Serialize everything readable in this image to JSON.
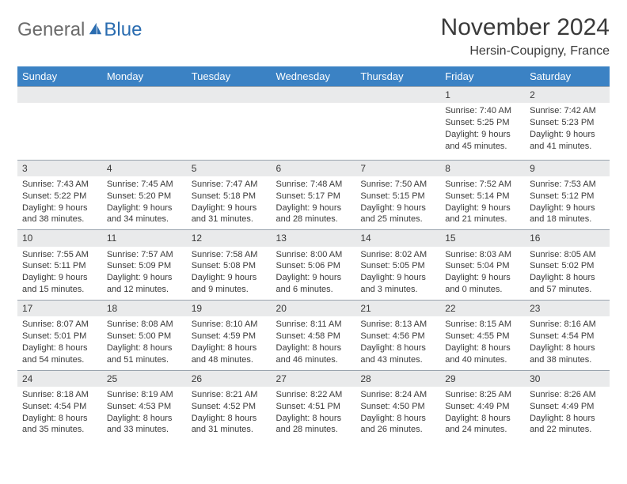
{
  "brand": {
    "general": "General",
    "blue": "Blue"
  },
  "header": {
    "month_title": "November 2024",
    "location": "Hersin-Coupigny, France"
  },
  "colors": {
    "header_bg": "#3b82c4",
    "header_text": "#ffffff",
    "daynum_bg": "#e9eaeb",
    "divider": "#9aa4ae",
    "text": "#3a3a3a",
    "logo_gray": "#6b6b6b",
    "logo_blue": "#2a6cb0",
    "page_bg": "#ffffff"
  },
  "daynames": [
    "Sunday",
    "Monday",
    "Tuesday",
    "Wednesday",
    "Thursday",
    "Friday",
    "Saturday"
  ],
  "weeks": [
    [
      null,
      null,
      null,
      null,
      null,
      {
        "n": "1",
        "sr": "Sunrise: 7:40 AM",
        "ss": "Sunset: 5:25 PM",
        "dl1": "Daylight: 9 hours",
        "dl2": "and 45 minutes."
      },
      {
        "n": "2",
        "sr": "Sunrise: 7:42 AM",
        "ss": "Sunset: 5:23 PM",
        "dl1": "Daylight: 9 hours",
        "dl2": "and 41 minutes."
      }
    ],
    [
      {
        "n": "3",
        "sr": "Sunrise: 7:43 AM",
        "ss": "Sunset: 5:22 PM",
        "dl1": "Daylight: 9 hours",
        "dl2": "and 38 minutes."
      },
      {
        "n": "4",
        "sr": "Sunrise: 7:45 AM",
        "ss": "Sunset: 5:20 PM",
        "dl1": "Daylight: 9 hours",
        "dl2": "and 34 minutes."
      },
      {
        "n": "5",
        "sr": "Sunrise: 7:47 AM",
        "ss": "Sunset: 5:18 PM",
        "dl1": "Daylight: 9 hours",
        "dl2": "and 31 minutes."
      },
      {
        "n": "6",
        "sr": "Sunrise: 7:48 AM",
        "ss": "Sunset: 5:17 PM",
        "dl1": "Daylight: 9 hours",
        "dl2": "and 28 minutes."
      },
      {
        "n": "7",
        "sr": "Sunrise: 7:50 AM",
        "ss": "Sunset: 5:15 PM",
        "dl1": "Daylight: 9 hours",
        "dl2": "and 25 minutes."
      },
      {
        "n": "8",
        "sr": "Sunrise: 7:52 AM",
        "ss": "Sunset: 5:14 PM",
        "dl1": "Daylight: 9 hours",
        "dl2": "and 21 minutes."
      },
      {
        "n": "9",
        "sr": "Sunrise: 7:53 AM",
        "ss": "Sunset: 5:12 PM",
        "dl1": "Daylight: 9 hours",
        "dl2": "and 18 minutes."
      }
    ],
    [
      {
        "n": "10",
        "sr": "Sunrise: 7:55 AM",
        "ss": "Sunset: 5:11 PM",
        "dl1": "Daylight: 9 hours",
        "dl2": "and 15 minutes."
      },
      {
        "n": "11",
        "sr": "Sunrise: 7:57 AM",
        "ss": "Sunset: 5:09 PM",
        "dl1": "Daylight: 9 hours",
        "dl2": "and 12 minutes."
      },
      {
        "n": "12",
        "sr": "Sunrise: 7:58 AM",
        "ss": "Sunset: 5:08 PM",
        "dl1": "Daylight: 9 hours",
        "dl2": "and 9 minutes."
      },
      {
        "n": "13",
        "sr": "Sunrise: 8:00 AM",
        "ss": "Sunset: 5:06 PM",
        "dl1": "Daylight: 9 hours",
        "dl2": "and 6 minutes."
      },
      {
        "n": "14",
        "sr": "Sunrise: 8:02 AM",
        "ss": "Sunset: 5:05 PM",
        "dl1": "Daylight: 9 hours",
        "dl2": "and 3 minutes."
      },
      {
        "n": "15",
        "sr": "Sunrise: 8:03 AM",
        "ss": "Sunset: 5:04 PM",
        "dl1": "Daylight: 9 hours",
        "dl2": "and 0 minutes."
      },
      {
        "n": "16",
        "sr": "Sunrise: 8:05 AM",
        "ss": "Sunset: 5:02 PM",
        "dl1": "Daylight: 8 hours",
        "dl2": "and 57 minutes."
      }
    ],
    [
      {
        "n": "17",
        "sr": "Sunrise: 8:07 AM",
        "ss": "Sunset: 5:01 PM",
        "dl1": "Daylight: 8 hours",
        "dl2": "and 54 minutes."
      },
      {
        "n": "18",
        "sr": "Sunrise: 8:08 AM",
        "ss": "Sunset: 5:00 PM",
        "dl1": "Daylight: 8 hours",
        "dl2": "and 51 minutes."
      },
      {
        "n": "19",
        "sr": "Sunrise: 8:10 AM",
        "ss": "Sunset: 4:59 PM",
        "dl1": "Daylight: 8 hours",
        "dl2": "and 48 minutes."
      },
      {
        "n": "20",
        "sr": "Sunrise: 8:11 AM",
        "ss": "Sunset: 4:58 PM",
        "dl1": "Daylight: 8 hours",
        "dl2": "and 46 minutes."
      },
      {
        "n": "21",
        "sr": "Sunrise: 8:13 AM",
        "ss": "Sunset: 4:56 PM",
        "dl1": "Daylight: 8 hours",
        "dl2": "and 43 minutes."
      },
      {
        "n": "22",
        "sr": "Sunrise: 8:15 AM",
        "ss": "Sunset: 4:55 PM",
        "dl1": "Daylight: 8 hours",
        "dl2": "and 40 minutes."
      },
      {
        "n": "23",
        "sr": "Sunrise: 8:16 AM",
        "ss": "Sunset: 4:54 PM",
        "dl1": "Daylight: 8 hours",
        "dl2": "and 38 minutes."
      }
    ],
    [
      {
        "n": "24",
        "sr": "Sunrise: 8:18 AM",
        "ss": "Sunset: 4:54 PM",
        "dl1": "Daylight: 8 hours",
        "dl2": "and 35 minutes."
      },
      {
        "n": "25",
        "sr": "Sunrise: 8:19 AM",
        "ss": "Sunset: 4:53 PM",
        "dl1": "Daylight: 8 hours",
        "dl2": "and 33 minutes."
      },
      {
        "n": "26",
        "sr": "Sunrise: 8:21 AM",
        "ss": "Sunset: 4:52 PM",
        "dl1": "Daylight: 8 hours",
        "dl2": "and 31 minutes."
      },
      {
        "n": "27",
        "sr": "Sunrise: 8:22 AM",
        "ss": "Sunset: 4:51 PM",
        "dl1": "Daylight: 8 hours",
        "dl2": "and 28 minutes."
      },
      {
        "n": "28",
        "sr": "Sunrise: 8:24 AM",
        "ss": "Sunset: 4:50 PM",
        "dl1": "Daylight: 8 hours",
        "dl2": "and 26 minutes."
      },
      {
        "n": "29",
        "sr": "Sunrise: 8:25 AM",
        "ss": "Sunset: 4:49 PM",
        "dl1": "Daylight: 8 hours",
        "dl2": "and 24 minutes."
      },
      {
        "n": "30",
        "sr": "Sunrise: 8:26 AM",
        "ss": "Sunset: 4:49 PM",
        "dl1": "Daylight: 8 hours",
        "dl2": "and 22 minutes."
      }
    ]
  ]
}
